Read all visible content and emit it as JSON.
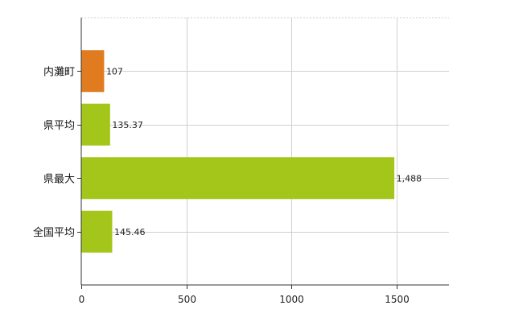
{
  "chart_data": {
    "type": "bar",
    "orientation": "horizontal",
    "categories": [
      "内灘町",
      "県平均",
      "県最大",
      "全国平均"
    ],
    "values": [
      107,
      135.37,
      1488,
      145.46
    ],
    "data_labels": [
      "107",
      "135.37",
      "1,488",
      "145.46"
    ],
    "colors": [
      "#e07b20",
      "#a4c61a",
      "#a4c61a",
      "#a4c61a"
    ],
    "xlim": [
      0,
      1750
    ],
    "x_ticks": [
      0,
      500,
      1000,
      1500
    ],
    "x_tick_labels": [
      "0",
      "500",
      "1000",
      "1500"
    ],
    "grid": true,
    "legend": "none"
  }
}
